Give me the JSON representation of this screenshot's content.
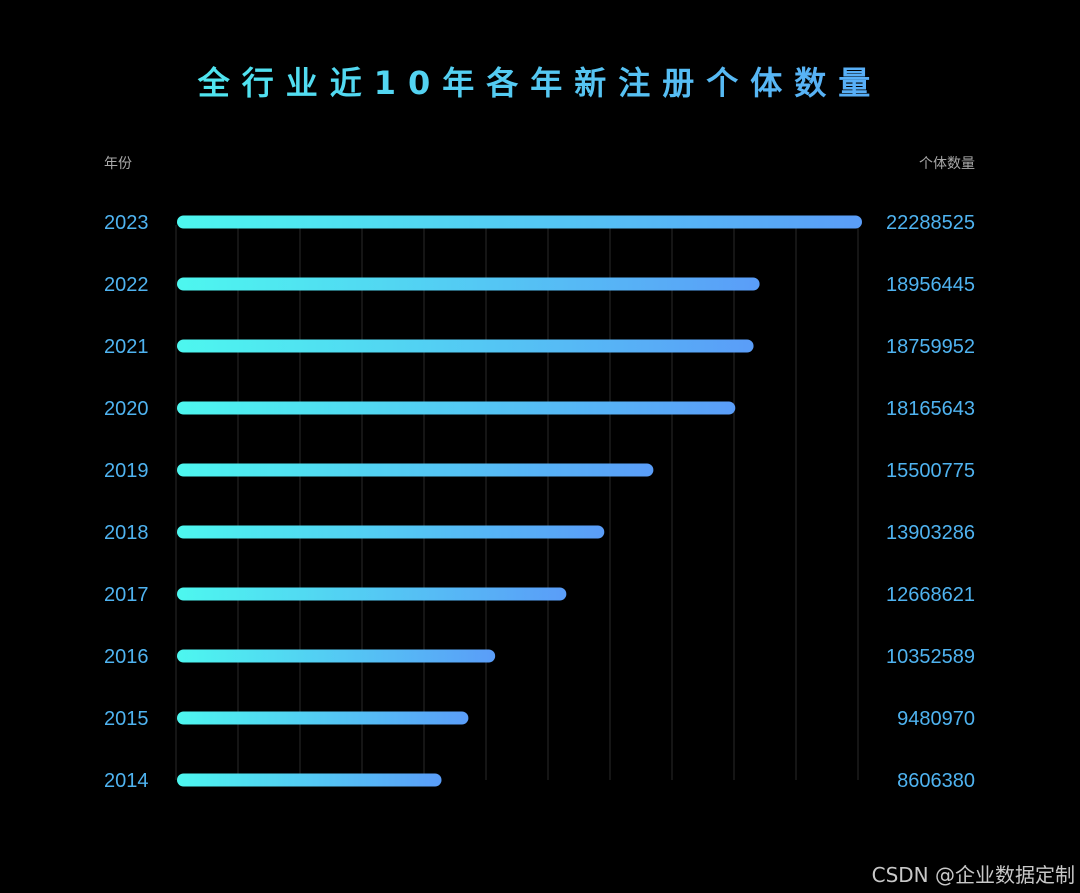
{
  "chart_data": {
    "type": "bar",
    "orientation": "horizontal",
    "title": "全行业近10年各年新注册个体数量",
    "category_header": "年份",
    "value_header": "个体数量",
    "categories": [
      "2023",
      "2022",
      "2021",
      "2020",
      "2019",
      "2018",
      "2017",
      "2016",
      "2015",
      "2014"
    ],
    "values": [
      22288525,
      18956445,
      18759952,
      18165643,
      15500775,
      13903286,
      12668621,
      10352589,
      9480970,
      8606380
    ],
    "value_labels": [
      "22288525",
      "18956445",
      "18759952",
      "18165643",
      "15500775",
      "13903286",
      "12668621",
      "10352589",
      "9480970",
      "8606380"
    ],
    "xlim": [
      0,
      22288525
    ],
    "grid": true,
    "colors": {
      "bar_start": "#4df7ef",
      "bar_end": "#5a9df8",
      "label": "#4fb3f0",
      "grid": "#2a2a2a"
    }
  },
  "watermark": "CSDN @企业数据定制"
}
